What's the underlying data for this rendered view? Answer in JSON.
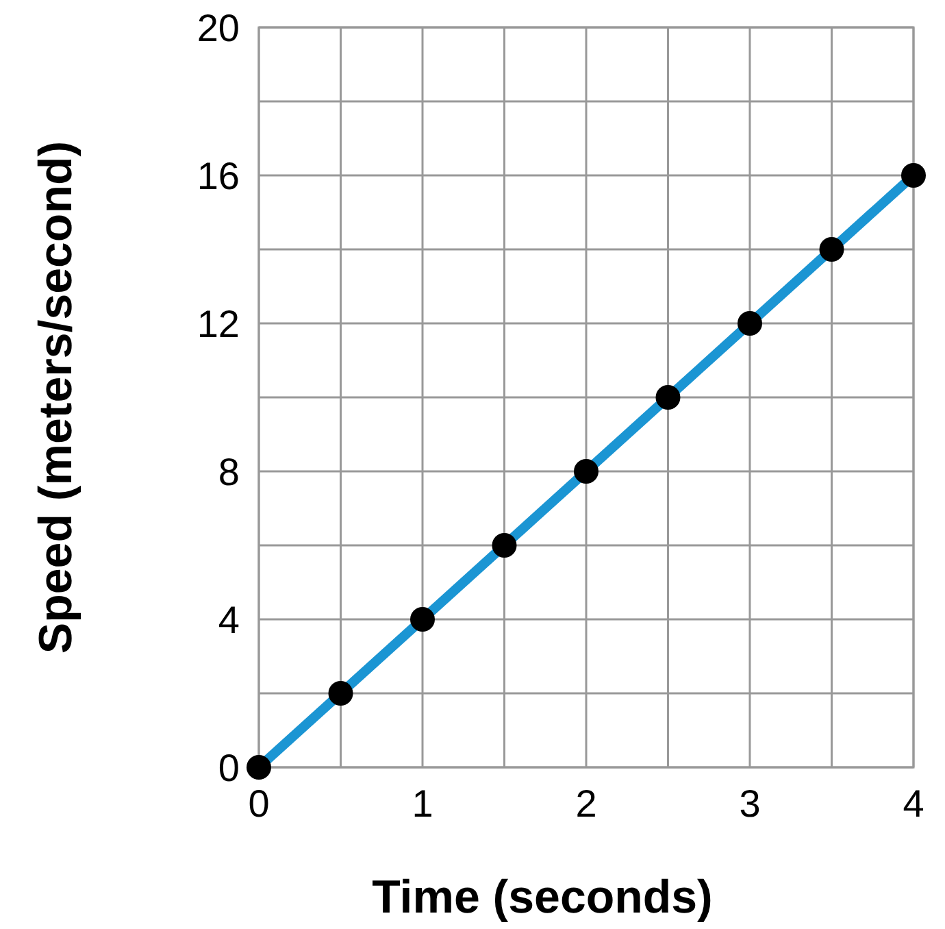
{
  "chart_data": {
    "type": "line",
    "xlabel": "Time (seconds)",
    "ylabel": "Speed (meters/second)",
    "x": [
      0,
      0.5,
      1,
      1.5,
      2,
      2.5,
      3,
      3.5,
      4
    ],
    "series": [
      {
        "color": "#1b95d3",
        "values": [
          0,
          2,
          4,
          6,
          8,
          10,
          12,
          14,
          16
        ]
      }
    ],
    "xlim": [
      0,
      4
    ],
    "ylim": [
      0,
      20
    ],
    "xticks": [
      0,
      {
        "value": 0.5,
        "label": null
      },
      1,
      {
        "value": 1.5,
        "label": null
      },
      2,
      {
        "value": 2.5,
        "label": null
      },
      3,
      {
        "value": 3.5,
        "label": null
      },
      4
    ],
    "yticks": [
      0,
      {
        "value": 2,
        "label": null
      },
      4,
      {
        "value": 6,
        "label": null
      },
      8,
      {
        "value": 10,
        "label": null
      },
      12,
      {
        "value": 14,
        "label": null
      },
      16,
      {
        "value": 18,
        "label": null
      },
      20
    ],
    "grid": true,
    "marker": "circle",
    "line_style": "solid"
  }
}
